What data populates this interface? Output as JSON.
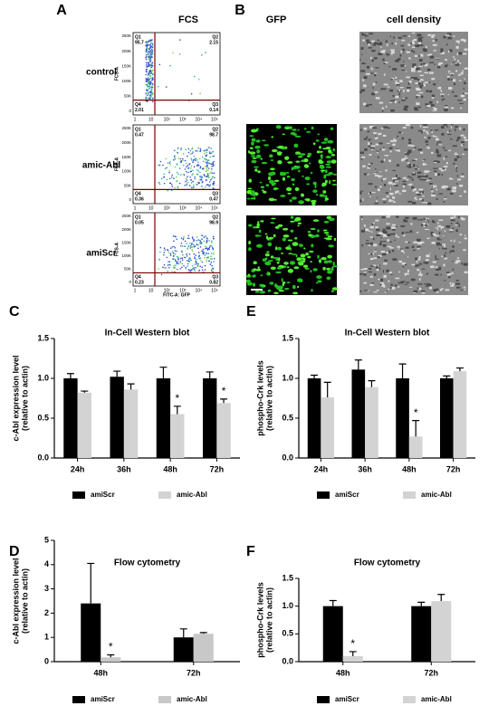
{
  "figure": {
    "panel_a": {
      "label": "A",
      "title": "FCS",
      "y_axis_label": "FCS-A",
      "x_axis_label": "FITC-A: GFP",
      "x_ticks": [
        "1",
        "10",
        "10²",
        "10³",
        "10⁴",
        "10⁵"
      ],
      "y_ticks": [
        "250K",
        "200K",
        "150K",
        "100K",
        "50K",
        "0"
      ],
      "plots": [
        {
          "name": "control",
          "quadrants": [
            {
              "label": "Q1",
              "value": "95.7"
            },
            {
              "label": "Q2",
              "value": "2.15"
            },
            {
              "label": "Q4",
              "value": "2.01"
            },
            {
              "label": "Q3",
              "value": "0.14"
            }
          ]
        },
        {
          "name": "amic-Abl",
          "quadrants": [
            {
              "label": "Q1",
              "value": "0.47"
            },
            {
              "label": "Q2",
              "value": "98.7"
            },
            {
              "label": "Q4",
              "value": "0.36"
            },
            {
              "label": "Q3",
              "value": "0.47"
            }
          ]
        },
        {
          "name": "amiScr",
          "quadrants": [
            {
              "label": "Q1",
              "value": "0.05"
            },
            {
              "label": "Q2",
              "value": "98.9"
            },
            {
              "label": "Q4",
              "value": "0.23"
            },
            {
              "label": "Q3",
              "value": "0.82"
            }
          ]
        }
      ]
    },
    "panel_b": {
      "label": "B",
      "columns": [
        "GFP",
        "cell density"
      ]
    }
  },
  "chart_data": [
    {
      "type": "bar",
      "panel_label": "C",
      "title": "In-Cell Western blot",
      "ylabel": [
        "c-Abl expression level",
        "(relative to actin)"
      ],
      "categories": [
        "24h",
        "36h",
        "48h",
        "72h"
      ],
      "series": [
        {
          "name": "amiScr",
          "color": "#000000",
          "values": [
            1.0,
            1.02,
            1.0,
            1.0
          ],
          "errors": [
            0.06,
            0.07,
            0.14,
            0.08
          ]
        },
        {
          "name": "amic-Abl",
          "color": "#d3d3d3",
          "values": [
            0.82,
            0.86,
            0.55,
            0.69
          ],
          "errors": [
            0.02,
            0.07,
            0.1,
            0.05
          ]
        }
      ],
      "ylim": [
        0,
        1.5
      ],
      "yticks": [
        {
          "value": 0,
          "label": "0.0"
        },
        0.5,
        {
          "value": 1,
          "label": "1.0"
        },
        1.5
      ],
      "annotations": [
        {
          "text": "*",
          "category": "48h"
        },
        {
          "text": "*",
          "category": "72h"
        }
      ]
    },
    {
      "type": "bar",
      "panel_label": "E",
      "title": "In-Cell Western blot",
      "ylabel": [
        "phospho-Crk  levels",
        "(relative to actin)"
      ],
      "categories": [
        "24h",
        "36h",
        "48h",
        "72h"
      ],
      "series": [
        {
          "name": "amiScr",
          "color": "#000000",
          "values": [
            1.0,
            1.11,
            1.0,
            1.0
          ],
          "errors": [
            0.04,
            0.12,
            0.18,
            0.03
          ]
        },
        {
          "name": "amic-Abl",
          "color": "#d3d3d3",
          "values": [
            0.76,
            0.89,
            0.27,
            1.09
          ],
          "errors": [
            0.19,
            0.08,
            0.2,
            0.04
          ]
        }
      ],
      "ylim": [
        0,
        1.5
      ],
      "yticks": [
        {
          "value": 0,
          "label": "0.0"
        },
        0.5,
        {
          "value": 1,
          "label": "1.0"
        },
        1.5
      ],
      "annotations": [
        {
          "text": "*",
          "category": "48h"
        }
      ]
    },
    {
      "type": "bar",
      "panel_label": "D",
      "title": "Flow cytometry",
      "ylabel": [
        "c-Abl expression level",
        "(relative to actin)"
      ],
      "categories": [
        "48h",
        "72h"
      ],
      "series": [
        {
          "name": "amiScr",
          "color": "#000000",
          "values": [
            2.4,
            1.0
          ],
          "errors": [
            1.65,
            0.35
          ]
        },
        {
          "name": "amic-Abl",
          "color": "#c8c8c8",
          "values": [
            0.18,
            1.15
          ],
          "errors": [
            0.1,
            0.05
          ]
        }
      ],
      "ylim": [
        0,
        5
      ],
      "yticks": [
        0,
        1,
        2,
        3,
        4,
        5
      ],
      "annotations": [
        {
          "text": "*",
          "category": "48h"
        }
      ]
    },
    {
      "type": "bar",
      "panel_label": "F",
      "title": "Flow cytometry",
      "ylabel": [
        "phospho-Crk  levels",
        "(relative to actin)"
      ],
      "categories": [
        "48h",
        "72h"
      ],
      "series": [
        {
          "name": "amiScr",
          "color": "#000000",
          "values": [
            1.0,
            1.0
          ],
          "errors": [
            0.1,
            0.07
          ]
        },
        {
          "name": "amic-Abl",
          "color": "#d3d3d3",
          "values": [
            0.1,
            1.09
          ],
          "errors": [
            0.08,
            0.12
          ]
        }
      ],
      "ylim": [
        0,
        1.5
      ],
      "yticks": [
        {
          "value": 0,
          "label": "0.0"
        },
        0.5,
        {
          "value": 1,
          "label": "1.0"
        },
        1.5
      ],
      "annotations": [
        {
          "text": "*",
          "category": "48h"
        }
      ]
    }
  ]
}
